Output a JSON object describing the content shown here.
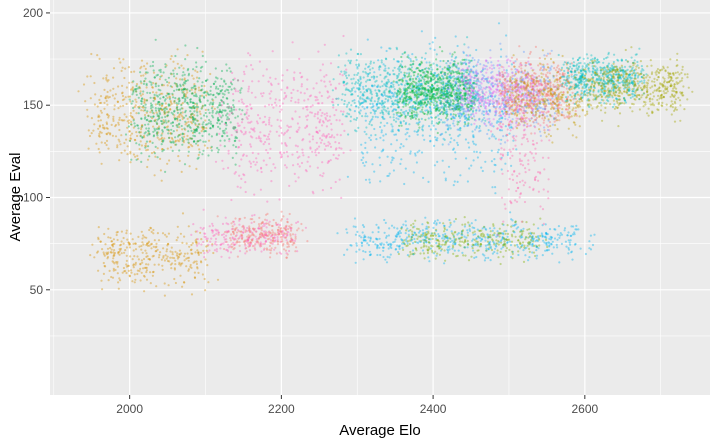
{
  "chart_data": {
    "type": "scatter",
    "title": "",
    "xlabel": "Average Elo",
    "ylabel": "Average Eval",
    "xlim": [
      1895,
      2765
    ],
    "ylim": [
      -7,
      207
    ],
    "x_ticks": [
      2000,
      2200,
      2400,
      2600
    ],
    "y_ticks": [
      50,
      100,
      150,
      200
    ],
    "x_tick_labels": [
      "2000",
      "2200",
      "2400",
      "2600"
    ],
    "y_tick_labels": [
      "50",
      "100",
      "150",
      "200"
    ],
    "grid": true,
    "legend": "none",
    "panel_background": "#ebebeb",
    "gridline_color": "#ffffff",
    "point_alpha": 0.4,
    "clusters": [
      {
        "color": "#d89000",
        "x_range": [
          1950,
          2100
        ],
        "y_center": 145,
        "y_sd": 14,
        "count": 500
      },
      {
        "color": "#d89000",
        "x_range": [
          1960,
          2100
        ],
        "y_center": 68,
        "y_sd": 8,
        "count": 350
      },
      {
        "color": "#00b050",
        "x_range": [
          2010,
          2140
        ],
        "y_center": 148,
        "y_sd": 13,
        "count": 650
      },
      {
        "color": "#ff62bc",
        "x_range": [
          2130,
          2280
        ],
        "y_center": 142,
        "y_sd": 18,
        "count": 450
      },
      {
        "color": "#f8766d",
        "x_range": [
          2130,
          2220
        ],
        "y_center": 80,
        "y_sd": 5,
        "count": 260
      },
      {
        "color": "#ff62bc",
        "x_range": [
          2090,
          2220
        ],
        "y_center": 79,
        "y_sd": 5,
        "count": 200
      },
      {
        "color": "#00bfc4",
        "x_range": [
          2280,
          2460
        ],
        "y_center": 158,
        "y_sd": 10,
        "count": 750
      },
      {
        "color": "#00b4f0",
        "x_range": [
          2300,
          2500
        ],
        "y_center": 145,
        "y_sd": 18,
        "count": 500
      },
      {
        "color": "#00ba38",
        "x_range": [
          2360,
          2450
        ],
        "y_center": 158,
        "y_sd": 8,
        "count": 650
      },
      {
        "color": "#619cff",
        "x_range": [
          2420,
          2560
        ],
        "y_center": 156,
        "y_sd": 10,
        "count": 500
      },
      {
        "color": "#e76bf3",
        "x_range": [
          2440,
          2540
        ],
        "y_center": 157,
        "y_sd": 8,
        "count": 400
      },
      {
        "color": "#f8766d",
        "x_range": [
          2490,
          2580
        ],
        "y_center": 157,
        "y_sd": 9,
        "count": 450
      },
      {
        "color": "#c49a00",
        "x_range": [
          2500,
          2600
        ],
        "y_center": 155,
        "y_sd": 9,
        "count": 300
      },
      {
        "color": "#00bfc4",
        "x_range": [
          2580,
          2670
        ],
        "y_center": 164,
        "y_sd": 6,
        "count": 550
      },
      {
        "color": "#a3a500",
        "x_range": [
          2600,
          2730
        ],
        "y_center": 160,
        "y_sd": 7,
        "count": 500
      },
      {
        "color": "#00b4f0",
        "x_range": [
          2290,
          2600
        ],
        "y_center": 77,
        "y_sd": 5,
        "count": 520
      },
      {
        "color": "#7cae00",
        "x_range": [
          2360,
          2540
        ],
        "y_center": 77,
        "y_sd": 5,
        "count": 300
      },
      {
        "color": "#ff64b0",
        "x_range": [
          2490,
          2550
        ],
        "y_center": 120,
        "y_sd": 18,
        "count": 150
      }
    ]
  }
}
